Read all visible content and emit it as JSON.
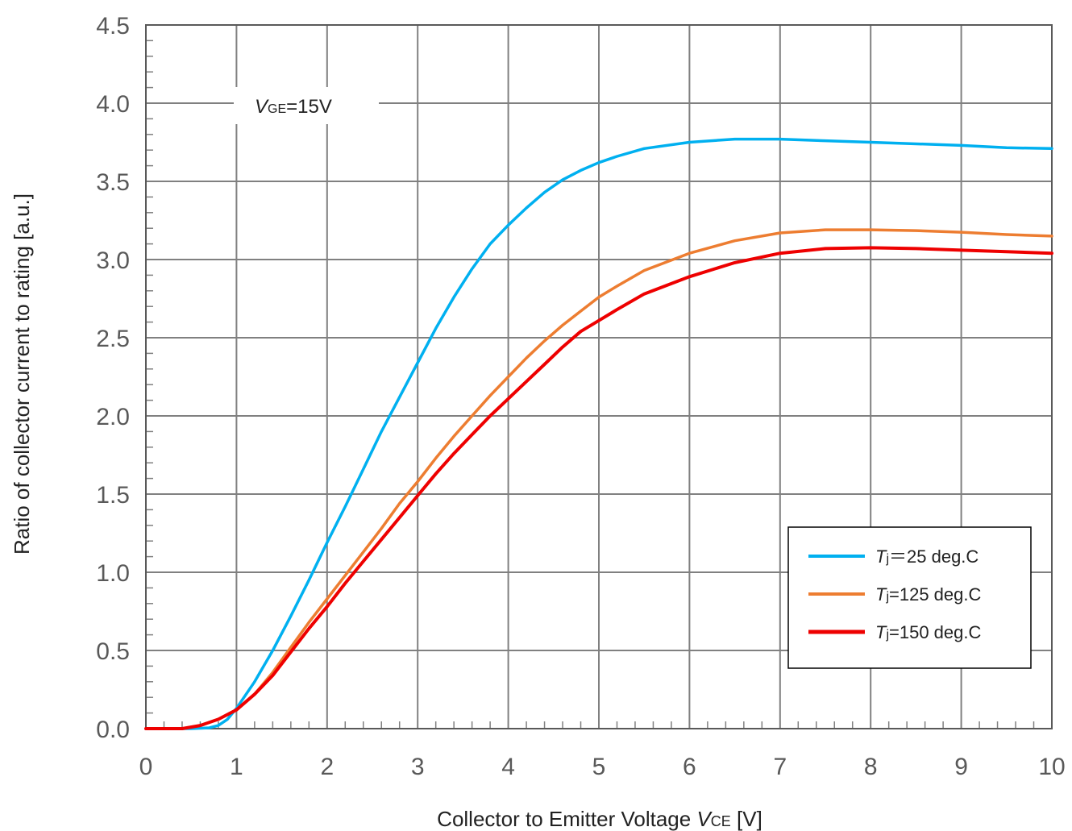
{
  "chart_data": {
    "type": "line",
    "xlabel": {
      "main": "Collector to Emitter Voltage ",
      "var": "V",
      "sub": "CE",
      "unit": " [V]"
    },
    "ylabel": "Ratio of collector current to rating [a.u.]",
    "xlim": [
      0,
      10
    ],
    "ylim": [
      0,
      4.5
    ],
    "xticks": [
      "0",
      "1",
      "2",
      "3",
      "4",
      "5",
      "6",
      "7",
      "8",
      "9",
      "10"
    ],
    "yticks": [
      "0.0",
      "0.5",
      "1.0",
      "1.5",
      "2.0",
      "2.5",
      "3.0",
      "3.5",
      "4.0",
      "4.5"
    ],
    "grid": true,
    "legend_position": "bottom-right",
    "annotation": {
      "var": "V",
      "sub": "GE",
      "text": "=15V"
    },
    "series": [
      {
        "name": "25 deg.C",
        "legend": {
          "var": "T",
          "sub": "j",
          "text": "＝25 deg.C"
        },
        "color": "#00B0F0",
        "points": [
          [
            0,
            0
          ],
          [
            0.5,
            0
          ],
          [
            0.7,
            0.005
          ],
          [
            0.8,
            0.02
          ],
          [
            0.9,
            0.06
          ],
          [
            1.0,
            0.13
          ],
          [
            1.2,
            0.3
          ],
          [
            1.4,
            0.5
          ],
          [
            1.6,
            0.72
          ],
          [
            1.8,
            0.95
          ],
          [
            2.0,
            1.19
          ],
          [
            2.2,
            1.42
          ],
          [
            2.4,
            1.66
          ],
          [
            2.6,
            1.9
          ],
          [
            2.8,
            2.12
          ],
          [
            3.0,
            2.34
          ],
          [
            3.2,
            2.56
          ],
          [
            3.4,
            2.76
          ],
          [
            3.6,
            2.94
          ],
          [
            3.8,
            3.1
          ],
          [
            4.0,
            3.22
          ],
          [
            4.2,
            3.33
          ],
          [
            4.4,
            3.43
          ],
          [
            4.6,
            3.51
          ],
          [
            4.8,
            3.57
          ],
          [
            5.0,
            3.62
          ],
          [
            5.2,
            3.66
          ],
          [
            5.5,
            3.71
          ],
          [
            6.0,
            3.75
          ],
          [
            6.5,
            3.77
          ],
          [
            7.0,
            3.77
          ],
          [
            7.5,
            3.76
          ],
          [
            8.0,
            3.75
          ],
          [
            9.0,
            3.73
          ],
          [
            9.5,
            3.715
          ],
          [
            10.0,
            3.71
          ]
        ]
      },
      {
        "name": "125 deg.C",
        "legend": {
          "var": "T",
          "sub": "j",
          "text": "=125 deg.C"
        },
        "color": "#ED7D31",
        "points": [
          [
            0,
            0
          ],
          [
            0.4,
            0
          ],
          [
            0.6,
            0.02
          ],
          [
            0.8,
            0.06
          ],
          [
            1.0,
            0.12
          ],
          [
            1.2,
            0.22
          ],
          [
            1.4,
            0.36
          ],
          [
            1.6,
            0.52
          ],
          [
            1.8,
            0.68
          ],
          [
            2.0,
            0.83
          ],
          [
            2.2,
            0.98
          ],
          [
            2.4,
            1.13
          ],
          [
            2.6,
            1.28
          ],
          [
            2.8,
            1.44
          ],
          [
            3.0,
            1.58
          ],
          [
            3.2,
            1.73
          ],
          [
            3.4,
            1.87
          ],
          [
            3.6,
            2.0
          ],
          [
            3.8,
            2.13
          ],
          [
            4.0,
            2.25
          ],
          [
            4.2,
            2.37
          ],
          [
            4.4,
            2.48
          ],
          [
            4.6,
            2.58
          ],
          [
            4.8,
            2.67
          ],
          [
            5.0,
            2.76
          ],
          [
            5.2,
            2.83
          ],
          [
            5.5,
            2.93
          ],
          [
            6.0,
            3.04
          ],
          [
            6.5,
            3.12
          ],
          [
            7.0,
            3.17
          ],
          [
            7.5,
            3.19
          ],
          [
            8.0,
            3.19
          ],
          [
            8.5,
            3.185
          ],
          [
            9.0,
            3.175
          ],
          [
            9.5,
            3.16
          ],
          [
            10.0,
            3.15
          ]
        ]
      },
      {
        "name": "150 deg.C",
        "legend": {
          "var": "T",
          "sub": "j",
          "text": "=150 deg.C"
        },
        "color": "#EE0000",
        "points": [
          [
            0,
            0
          ],
          [
            0.4,
            0
          ],
          [
            0.6,
            0.02
          ],
          [
            0.8,
            0.06
          ],
          [
            1.0,
            0.12
          ],
          [
            1.2,
            0.22
          ],
          [
            1.4,
            0.34
          ],
          [
            1.6,
            0.49
          ],
          [
            1.8,
            0.64
          ],
          [
            2.0,
            0.78
          ],
          [
            2.2,
            0.93
          ],
          [
            2.4,
            1.07
          ],
          [
            2.6,
            1.21
          ],
          [
            2.8,
            1.35
          ],
          [
            3.0,
            1.49
          ],
          [
            3.2,
            1.63
          ],
          [
            3.4,
            1.76
          ],
          [
            3.6,
            1.88
          ],
          [
            3.8,
            2.0
          ],
          [
            4.0,
            2.11
          ],
          [
            4.2,
            2.22
          ],
          [
            4.4,
            2.33
          ],
          [
            4.6,
            2.44
          ],
          [
            4.8,
            2.54
          ],
          [
            5.0,
            2.61
          ],
          [
            5.2,
            2.68
          ],
          [
            5.5,
            2.78
          ],
          [
            6.0,
            2.89
          ],
          [
            6.5,
            2.98
          ],
          [
            7.0,
            3.04
          ],
          [
            7.5,
            3.07
          ],
          [
            8.0,
            3.075
          ],
          [
            8.5,
            3.07
          ],
          [
            9.0,
            3.06
          ],
          [
            9.5,
            3.05
          ],
          [
            10.0,
            3.04
          ]
        ]
      }
    ]
  }
}
